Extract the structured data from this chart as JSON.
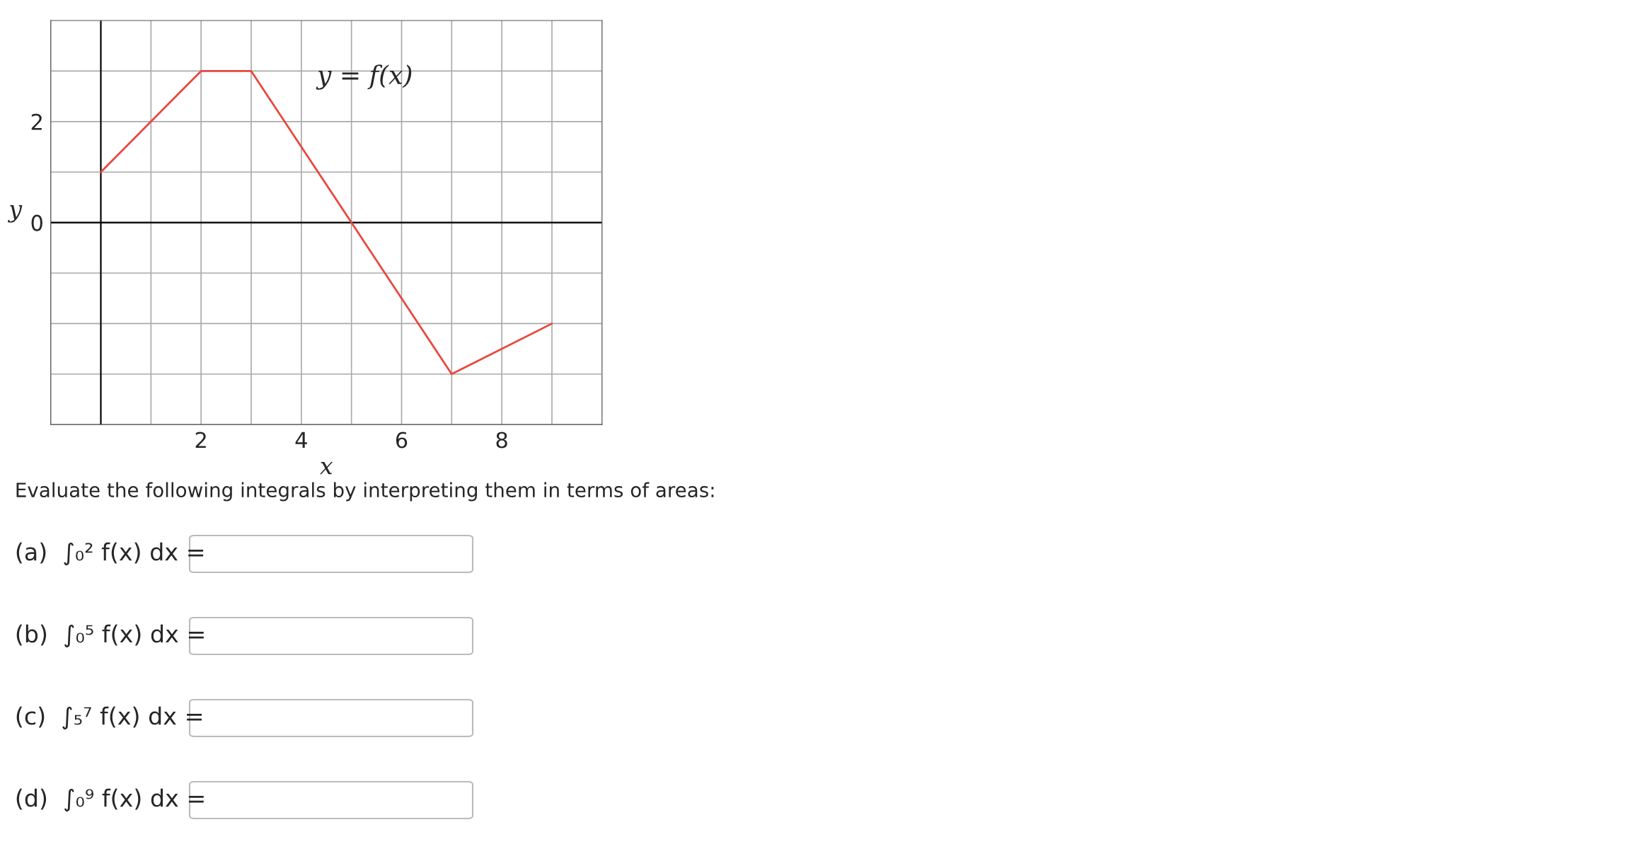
{
  "chart_data": {
    "type": "line",
    "xlabel": "x",
    "ylabel": "y",
    "x": [
      0,
      2,
      3,
      5,
      7,
      9
    ],
    "series": [
      {
        "color": "#e8483e",
        "values": [
          1,
          3,
          3,
          0,
          -3,
          -2
        ]
      }
    ],
    "xlim": [
      -1,
      10
    ],
    "ylim": [
      -4,
      4
    ],
    "xticks": [
      {
        "value": -1,
        "label": null
      },
      {
        "value": 0,
        "label": null
      },
      {
        "value": 1,
        "label": null
      },
      2,
      {
        "value": 3,
        "label": null
      },
      4,
      {
        "value": 5,
        "label": null
      },
      6,
      {
        "value": 7,
        "label": null
      },
      8,
      {
        "value": 9,
        "label": null
      },
      {
        "value": 10,
        "label": null
      }
    ],
    "yticks": [
      {
        "value": -4,
        "label": null
      },
      {
        "value": -3,
        "label": null
      },
      {
        "value": -2,
        "label": null
      },
      {
        "value": -1,
        "label": null
      },
      0,
      {
        "value": 1,
        "label": null
      },
      2,
      {
        "value": 3,
        "label": null
      }
    ],
    "grid": true,
    "marker": "none",
    "line_style": "solid",
    "annotations": [
      "y = f(x)",
      "Evaluate the following integrals by interpreting them in terms of areas:",
      "(a)  ∫₀² f(x) dx =",
      "(b)  ∫₀⁵ f(x) dx =",
      "(c)  ∫₅⁷ f(x) dx =",
      "(d)  ∫₀⁹ f(x) dx ="
    ]
  }
}
